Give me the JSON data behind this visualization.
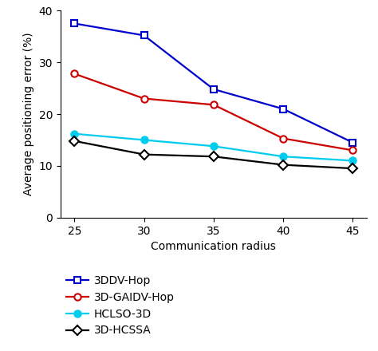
{
  "x": [
    25,
    30,
    35,
    40,
    45
  ],
  "series": {
    "3DDV-Hop": {
      "y": [
        37.5,
        35.2,
        24.8,
        21.0,
        14.5
      ],
      "color": "#0000cc",
      "marker": "s",
      "markersize": 6,
      "linewidth": 1.6,
      "markerfacecolor": "white",
      "markeredgewidth": 1.5
    },
    "3D-GAIDV-Hop": {
      "y": [
        27.8,
        23.0,
        21.8,
        15.3,
        13.0
      ],
      "color": "#cc0000",
      "marker": "o",
      "markersize": 6,
      "linewidth": 1.6,
      "markerfacecolor": "white",
      "markeredgewidth": 1.5
    },
    "HCLSO-3D": {
      "y": [
        16.2,
        15.0,
        13.8,
        11.8,
        11.0
      ],
      "color": "#00ccee",
      "marker": "o",
      "markersize": 6,
      "linewidth": 1.6,
      "markerfacecolor": "#00ccee",
      "markeredgewidth": 1.5
    },
    "3D-HCSSA": {
      "y": [
        14.8,
        12.2,
        11.8,
        10.2,
        9.5
      ],
      "color": "#000000",
      "marker": "D",
      "markersize": 6,
      "linewidth": 1.6,
      "markerfacecolor": "white",
      "markeredgewidth": 1.5
    }
  },
  "xlabel": "Communication radius",
  "ylabel": "Average positioning error (%)",
  "xlim": [
    24,
    46
  ],
  "ylim": [
    0,
    40
  ],
  "yticks": [
    0,
    10,
    20,
    30,
    40
  ],
  "xticks": [
    25,
    30,
    35,
    40,
    45
  ],
  "legend_order": [
    "3DDV-Hop",
    "3D-GAIDV-Hop",
    "HCLSO-3D",
    "3D-HCSSA"
  ],
  "background_color": "#ffffff",
  "xlabel_fontsize": 10,
  "ylabel_fontsize": 10,
  "tick_fontsize": 10,
  "legend_fontsize": 10
}
